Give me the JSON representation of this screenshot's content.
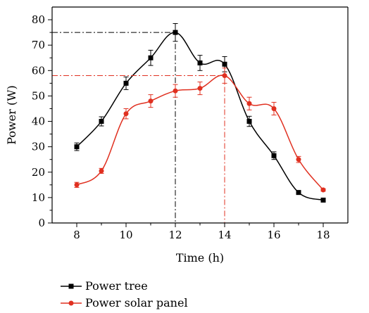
{
  "chart_data": {
    "type": "line",
    "title": "",
    "xlabel": "Time (h)",
    "ylabel": "Power (W)",
    "xlim": [
      7,
      19
    ],
    "ylim": [
      0,
      85
    ],
    "xticks": [
      8,
      10,
      12,
      14,
      16,
      18
    ],
    "yticks": [
      0,
      10,
      20,
      30,
      40,
      50,
      60,
      70,
      80
    ],
    "grid": false,
    "legend_position": "bottom-left",
    "x": [
      8,
      9,
      10,
      11,
      12,
      13,
      14,
      15,
      16,
      17,
      18
    ],
    "series": [
      {
        "name": "Power tree",
        "color": "#000000",
        "marker": "square",
        "values": [
          30,
          40,
          55,
          65,
          75,
          63,
          62.5,
          40,
          26.5,
          12,
          9
        ],
        "errors": [
          1.5,
          1.8,
          2.5,
          3,
          3.5,
          3,
          3,
          2,
          1.5,
          0.5,
          0.5
        ]
      },
      {
        "name": "Power solar panel",
        "color": "#e03020",
        "marker": "circle",
        "values": [
          15,
          20.5,
          43,
          48,
          52,
          53,
          58,
          47,
          45,
          25,
          13
        ],
        "errors": [
          1,
          1,
          2,
          2.5,
          2.5,
          2.5,
          3,
          2.5,
          2.5,
          1.2,
          0.5
        ]
      }
    ],
    "annotations": [
      {
        "x": 12,
        "y": 75,
        "series": "Power tree",
        "color": "#000000"
      },
      {
        "x": 14,
        "y": 58,
        "series": "Power solar panel",
        "color": "#e03020"
      }
    ]
  }
}
